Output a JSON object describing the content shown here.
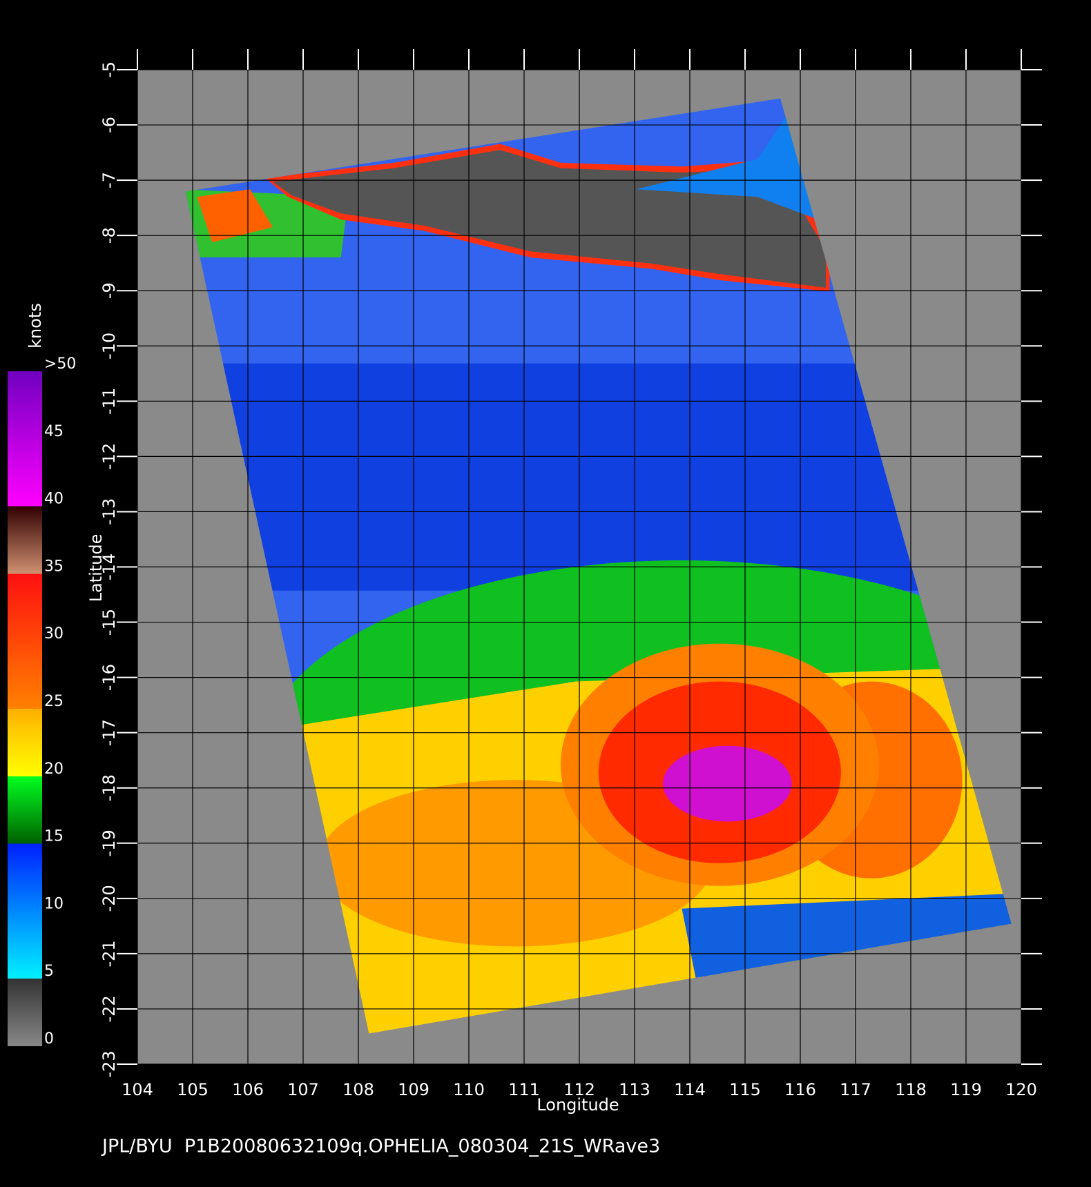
{
  "map": {
    "title": "JPL/BYU  P1B20080632109q.OPHELIA_080304_21S_WRave3",
    "xlabel": "Longitude",
    "ylabel": "Latitude",
    "xlim": [
      104,
      120
    ],
    "ylim": [
      -23,
      -5
    ],
    "xticks": [
      104,
      105,
      106,
      107,
      108,
      109,
      110,
      111,
      112,
      113,
      114,
      115,
      116,
      117,
      118,
      119,
      120
    ],
    "yticks": [
      -5,
      -6,
      -7,
      -8,
      -9,
      -10,
      -11,
      -12,
      -13,
      -14,
      -15,
      -16,
      -17,
      -18,
      -19,
      -20,
      -21,
      -22,
      -23
    ],
    "colorbar": {
      "label": "knots",
      "lim": [
        0,
        50
      ],
      "ticks": [
        0,
        5,
        10,
        15,
        20,
        25,
        30,
        35,
        40,
        45,
        {
          "value": 50,
          "label": ">50"
        }
      ]
    }
  }
}
